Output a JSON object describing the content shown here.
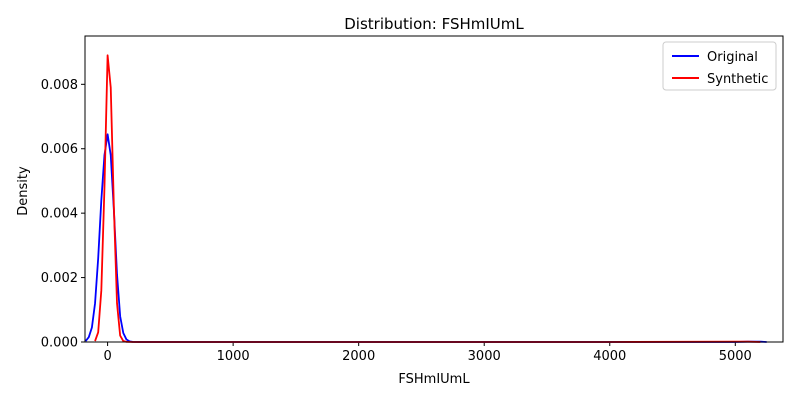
{
  "chart_data": {
    "type": "line",
    "title": "Distribution: FSHmIUmL",
    "xlabel": "FSHmIUmL",
    "ylabel": "Density",
    "xlim": [
      -180,
      5380
    ],
    "ylim": [
      0,
      0.0095
    ],
    "xticks": [
      0,
      1000,
      2000,
      3000,
      4000,
      5000
    ],
    "yticks": [
      0.0,
      0.002,
      0.004,
      0.006,
      0.008
    ],
    "ytick_labels": [
      "0.000",
      "0.002",
      "0.004",
      "0.006",
      "0.008"
    ],
    "grid": false,
    "legend": "top-right",
    "series": [
      {
        "name": "Original",
        "color": "#0000ff",
        "x": [
          -175,
          -150,
          -125,
          -100,
          -75,
          -50,
          -25,
          0,
          25,
          50,
          75,
          100,
          125,
          150,
          175,
          200,
          250,
          300,
          500,
          1000,
          2000,
          3000,
          4000,
          5000,
          5100,
          5200,
          5250
        ],
        "y": [
          3e-05,
          0.00015,
          0.00045,
          0.0012,
          0.0026,
          0.0044,
          0.0058,
          0.00645,
          0.0058,
          0.0041,
          0.0021,
          0.0008,
          0.00028,
          8e-05,
          2e-05,
          5e-06,
          0,
          0,
          0,
          0,
          0,
          0,
          0,
          0,
          1e-05,
          1e-05,
          0
        ]
      },
      {
        "name": "Synthetic",
        "color": "#ff0000",
        "x": [
          -100,
          -75,
          -50,
          -25,
          0,
          25,
          50,
          75,
          100,
          125,
          150,
          200,
          300,
          500,
          1000,
          2000,
          3000,
          4000,
          5000,
          5100,
          5200
        ],
        "y": [
          3e-05,
          0.0003,
          0.0016,
          0.0048,
          0.0089,
          0.0079,
          0.0042,
          0.0012,
          0.0002,
          3e-05,
          5e-06,
          0,
          0,
          0,
          0,
          0,
          0,
          0,
          1e-05,
          1e-05,
          0
        ]
      }
    ]
  }
}
